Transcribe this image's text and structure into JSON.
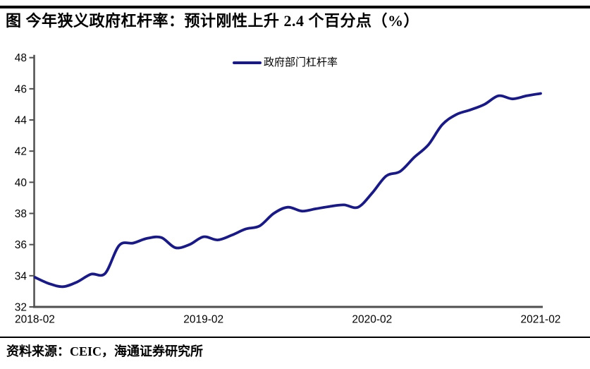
{
  "page": {
    "title": "图  今年狭义政府杠杆率：预计刚性上升 2.4 个百分点（%）",
    "source_label": "资料来源：CEIC，海通证券研究所"
  },
  "legend": {
    "series_label": "政府部门杠杆率"
  },
  "colors": {
    "line": "#1b1b7e",
    "axis": "#4f4f4f",
    "text": "#000000",
    "rule": "#000000"
  },
  "chart_data": {
    "type": "line",
    "title": "今年狭义政府杠杆率：预计刚性上升2.4个百分点（%）",
    "xlabel": "",
    "ylabel": "",
    "ylim": [
      32,
      48
    ],
    "ytick_step": 2,
    "yticks": [
      32,
      34,
      36,
      38,
      40,
      42,
      44,
      46,
      48
    ],
    "xticks": [
      "2018-02",
      "2019-02",
      "2020-02",
      "2021-02"
    ],
    "grid": false,
    "legend_position": "top-center",
    "x": [
      "2018-02",
      "2018-03",
      "2018-04",
      "2018-05",
      "2018-06",
      "2018-07",
      "2018-08",
      "2018-09",
      "2018-10",
      "2018-11",
      "2018-12",
      "2019-01",
      "2019-02",
      "2019-03",
      "2019-04",
      "2019-05",
      "2019-06",
      "2019-07",
      "2019-08",
      "2019-09",
      "2019-10",
      "2019-11",
      "2019-12",
      "2020-01",
      "2020-02",
      "2020-03",
      "2020-04",
      "2020-05",
      "2020-06",
      "2020-07",
      "2020-08",
      "2020-09",
      "2020-10",
      "2020-11",
      "2020-12",
      "2021-01",
      "2021-02"
    ],
    "series": [
      {
        "name": "政府部门杠杆率",
        "values": [
          33.9,
          33.5,
          33.3,
          33.6,
          34.1,
          34.15,
          35.95,
          36.1,
          36.4,
          36.45,
          35.8,
          36.0,
          36.5,
          36.3,
          36.6,
          37.0,
          37.2,
          38.0,
          38.4,
          38.15,
          38.3,
          38.45,
          38.55,
          38.4,
          39.3,
          40.4,
          40.7,
          41.6,
          42.4,
          43.7,
          44.35,
          44.65,
          45.0,
          45.55,
          45.35,
          45.55,
          45.7
        ]
      }
    ]
  }
}
